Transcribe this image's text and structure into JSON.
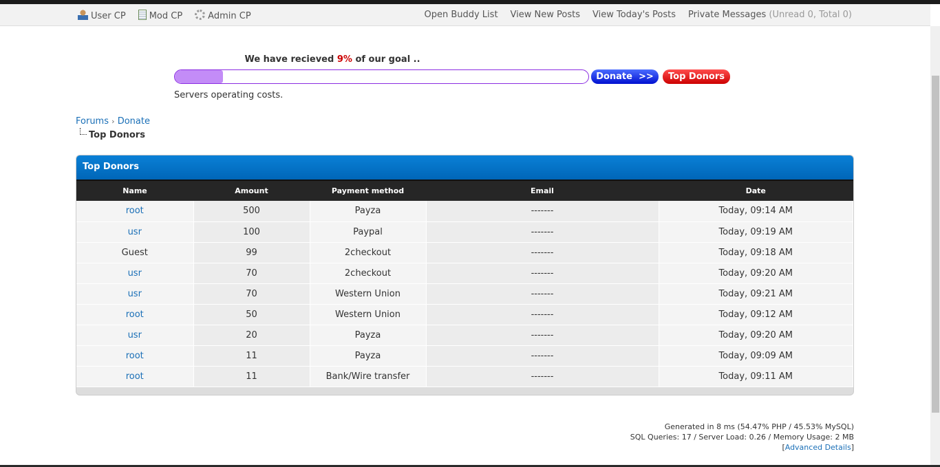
{
  "nav": {
    "left": [
      {
        "label": "User CP",
        "icon": "user-icon"
      },
      {
        "label": "Mod CP",
        "icon": "notepad-icon"
      },
      {
        "label": "Admin CP",
        "icon": "gear-icon"
      }
    ],
    "right": {
      "buddy": "Open Buddy List",
      "new_posts": "View New Posts",
      "today": "View Today's Posts",
      "pm": "Private Messages",
      "pm_count": "(Unread 0, Total 0)"
    }
  },
  "goal": {
    "prefix": "We have recieved ",
    "percent_text": "9%",
    "suffix": " of our goal ..",
    "percent": 9,
    "donate_label": "Donate  >>",
    "top_donors_label": "Top Donors",
    "description": "Servers operating costs.",
    "fill_color": "#c38cf7"
  },
  "breadcrumb": {
    "forums": "Forums",
    "sep": "›",
    "donate": "Donate",
    "current": "Top Donors"
  },
  "table": {
    "title": "Top Donors",
    "columns": [
      "Name",
      "Amount",
      "Payment method",
      "Email",
      "Date"
    ],
    "rows": [
      {
        "name": "root",
        "link": true,
        "amount": "500",
        "method": "Payza",
        "email": "-------",
        "date": "Today, 09:14 AM"
      },
      {
        "name": "usr",
        "link": true,
        "amount": "100",
        "method": "Paypal",
        "email": "-------",
        "date": "Today, 09:19 AM"
      },
      {
        "name": "Guest",
        "link": false,
        "amount": "99",
        "method": "2checkout",
        "email": "-------",
        "date": "Today, 09:18 AM"
      },
      {
        "name": "usr",
        "link": true,
        "amount": "70",
        "method": "2checkout",
        "email": "-------",
        "date": "Today, 09:20 AM"
      },
      {
        "name": "usr",
        "link": true,
        "amount": "70",
        "method": "Western Union",
        "email": "-------",
        "date": "Today, 09:21 AM"
      },
      {
        "name": "root",
        "link": true,
        "amount": "50",
        "method": "Western Union",
        "email": "-------",
        "date": "Today, 09:12 AM"
      },
      {
        "name": "usr",
        "link": true,
        "amount": "20",
        "method": "Payza",
        "email": "-------",
        "date": "Today, 09:20 AM"
      },
      {
        "name": "root",
        "link": true,
        "amount": "11",
        "method": "Payza",
        "email": "-------",
        "date": "Today, 09:09 AM"
      },
      {
        "name": "root",
        "link": true,
        "amount": "11",
        "method": "Bank/Wire transfer",
        "email": "-------",
        "date": "Today, 09:11 AM"
      }
    ]
  },
  "footer": {
    "generated": "Generated in 8 ms (54.47% PHP / 45.53% MySQL)",
    "queries": "SQL Queries: 17 / Server Load: 0.26 / Memory Usage: 2 MB",
    "bracket_open": "[",
    "advanced": "Advanced Details",
    "bracket_close": "]"
  }
}
